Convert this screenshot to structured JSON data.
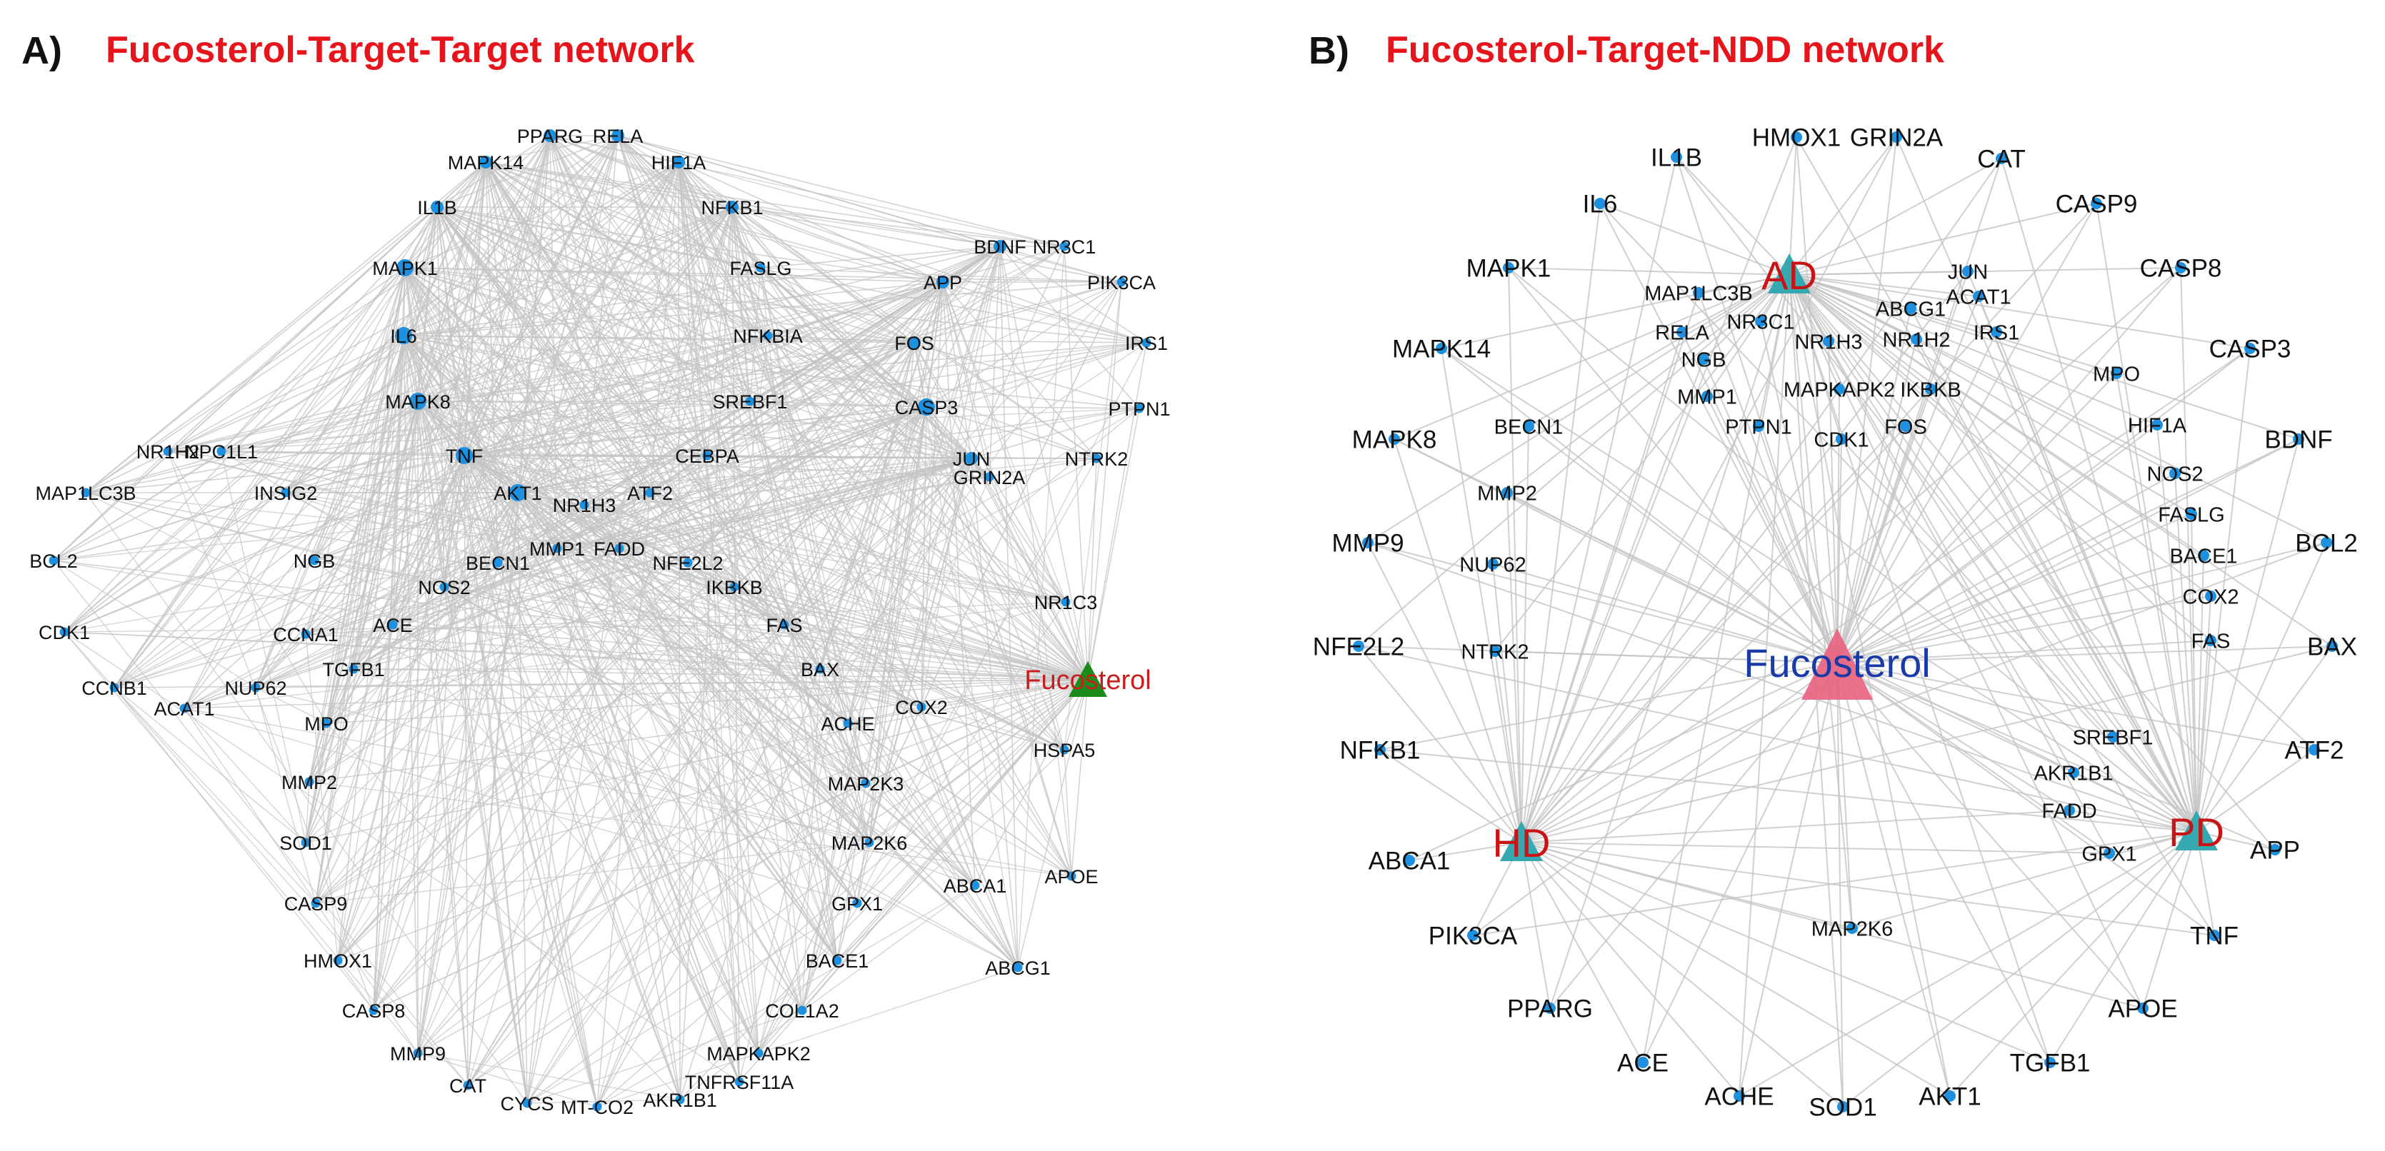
{
  "panelA": {
    "letter": "A)",
    "title": "Fucosterol-Target-Target network",
    "center": "Fucosterol",
    "nodes": [
      "PPARG",
      "RELA",
      "MAPK14",
      "HIF1A",
      "IL1B",
      "NFKB1",
      "BDNF",
      "NR3C1",
      "MAPK1",
      "FASLG",
      "APP",
      "PIK3CA",
      "IL6",
      "NFKBIA",
      "FOS",
      "IRS1",
      "MAPK8",
      "SREBF1",
      "CASP3",
      "PTPN1",
      "NR1H2",
      "NPC1L1",
      "TNF",
      "CEBPA",
      "JUN",
      "NTRK2",
      "MAP1LC3B",
      "INSIG2",
      "AKT1",
      "ATF2",
      "GRIN2A",
      "NR1H3",
      "BCL2",
      "NGB",
      "MMP1",
      "FADD",
      "NFE2L2",
      "BECN1",
      "NOS2",
      "IKBKB",
      "CDK1",
      "ACE",
      "FAS",
      "CCNA1",
      "NR1C3",
      "CCNB1",
      "NUP62",
      "TGFB1",
      "BAX",
      "ACAT1",
      "ACHE",
      "COX2",
      "MPO",
      "HSPA5",
      "MMP2",
      "MAP2K3",
      "SOD1",
      "MAP2K6",
      "CASP9",
      "APOE",
      "ABCA1",
      "GPX1",
      "HMOX1",
      "BACE1",
      "ABCG1",
      "CASP8",
      "COL1A2",
      "MMP9",
      "MAPKAPK2",
      "CAT",
      "TNFRSF11A",
      "CYCS",
      "MT-CO2",
      "AKR1B1"
    ]
  },
  "panelB": {
    "letter": "B)",
    "title": "Fucosterol-Target-NDD network",
    "center": "Fucosterol",
    "diseases": [
      "AD",
      "HD",
      "PD"
    ],
    "outer_nodes": [
      "HMOX1",
      "GRIN2A",
      "IL1B",
      "CAT",
      "IL6",
      "CASP9",
      "MAPK1",
      "CASP8",
      "MAPK14",
      "CASP3",
      "MAPK8",
      "BDNF",
      "MMP9",
      "BCL2",
      "NFE2L2",
      "BAX",
      "NFKB1",
      "ATF2",
      "ABCA1",
      "APP",
      "PIK3CA",
      "TNF",
      "PPARG",
      "APOE",
      "ACE",
      "TGFB1",
      "ACHE",
      "SOD1",
      "AKT1"
    ],
    "inner_nodes": [
      "JUN",
      "MAP1LC3B",
      "ABCG1",
      "ACAT1",
      "RELA",
      "NR3C1",
      "NR1H3",
      "NR1H2",
      "IRS1",
      "NGB",
      "MPO",
      "MMP1",
      "MAPKAPK2",
      "IKBKB",
      "PTPN1",
      "CDK1",
      "FOS",
      "BECN1",
      "HIF1A",
      "MMP2",
      "NOS2",
      "FASLG",
      "NUP62",
      "BACE1",
      "COX2",
      "NTRK2",
      "FAS",
      "SREBF1",
      "AKR1B1",
      "FADD",
      "GPX1",
      "MAP2K6"
    ]
  },
  "colors": {
    "title": "#e8141c",
    "node": "#1e90e0",
    "edge": "#c4c4c4",
    "fucosterol_a": "#1a8c1a",
    "fucosterol_a_label": "#c81e1e",
    "fucosterol_b": "#e8607f",
    "fucosterol_b_label": "#1a3aa8",
    "disease_triangle": "#35a8b0",
    "disease_label": "#c81414"
  }
}
